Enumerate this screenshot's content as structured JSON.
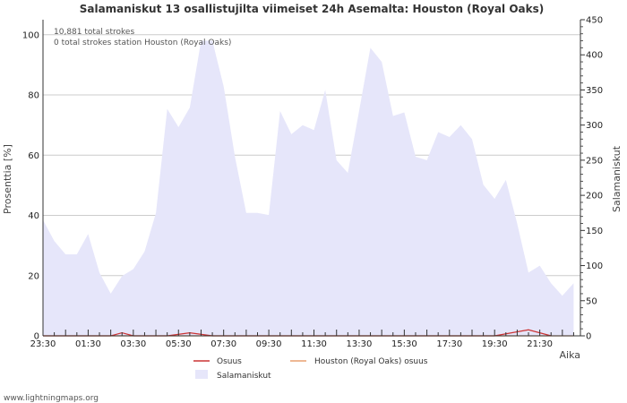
{
  "chart_data": {
    "type": "area",
    "title": "Salamaniskut 13 osallistujilta viimeiset 24h Asemalta: Houston (Royal Oaks)",
    "xlabel": "Aika",
    "ylabel_left": "Prosenttia   [%]",
    "ylabel_right": "Salamaniskut",
    "x_tick_labels": [
      "23:30",
      "01:30",
      "03:30",
      "05:30",
      "07:30",
      "09:30",
      "11:30",
      "13:30",
      "15:30",
      "17:30",
      "19:30",
      "21:30"
    ],
    "y_left_ticks": [
      "0",
      "20",
      "40",
      "60",
      "80",
      "100"
    ],
    "y_left_lim": [
      0,
      105
    ],
    "y_right_ticks": [
      "0",
      "50",
      "100",
      "150",
      "200",
      "250",
      "300",
      "350",
      "400",
      "450"
    ],
    "y_right_lim": [
      0,
      450
    ],
    "x_range_hours": [
      0,
      23.8
    ],
    "annotations": [
      "10,881 total strokes",
      "0 total strokes station Houston (Royal Oaks)"
    ],
    "legend": [
      "Osuus",
      "Houston (Royal Oaks) osuus",
      "Salamaniskut"
    ],
    "series": [
      {
        "name": "Salamaniskut",
        "axis": "right",
        "color": "#e6e6fa",
        "x": [
          0,
          0.5,
          1,
          1.5,
          2,
          2.5,
          3,
          3.5,
          4,
          4.5,
          5,
          5.5,
          6,
          6.5,
          7,
          7.5,
          8,
          8.5,
          9,
          9.5,
          10,
          10.5,
          11,
          11.5,
          12,
          12.5,
          13,
          13.5,
          14,
          14.5,
          15,
          15.5,
          16,
          16.5,
          17,
          17.5,
          18,
          18.5,
          19,
          19.5,
          20,
          20.5,
          21,
          21.5,
          22,
          22.5,
          23,
          23.5
        ],
        "values": [
          165,
          135,
          116,
          116,
          145,
          90,
          60,
          85,
          95,
          120,
          175,
          323,
          297,
          325,
          420,
          420,
          355,
          255,
          175,
          175,
          172,
          320,
          287,
          300,
          293,
          350,
          250,
          232,
          320,
          410,
          390,
          313,
          318,
          255,
          250,
          290,
          283,
          300,
          280,
          215,
          195,
          222,
          160,
          90,
          100,
          75,
          57,
          75
        ]
      },
      {
        "name": "Osuus",
        "axis": "left",
        "color": "#cc3333",
        "x": [
          0,
          3.0,
          3.5,
          4.0,
          5.5,
          6.5,
          7.5,
          8.5,
          12.0,
          15.5,
          17.5,
          20.0,
          21.5,
          22.5
        ],
        "values": [
          0,
          0,
          1,
          0,
          0,
          1,
          0,
          0,
          0,
          0,
          0,
          0,
          2,
          0
        ]
      },
      {
        "name": "Houston (Royal Oaks) osuus",
        "axis": "left",
        "color": "#e8a070",
        "x": [
          0,
          23.5
        ],
        "values": [
          0,
          0
        ]
      }
    ]
  },
  "footer": "www.lightningmaps.org"
}
